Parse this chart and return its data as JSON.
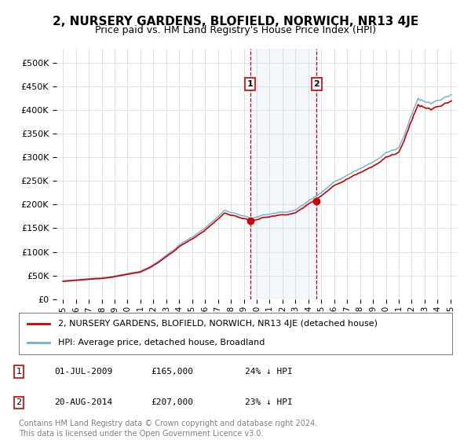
{
  "title": "2, NURSERY GARDENS, BLOFIELD, NORWICH, NR13 4JE",
  "subtitle": "Price paid vs. HM Land Registry's House Price Index (HPI)",
  "hpi_label": "HPI: Average price, detached house, Broadland",
  "property_label": "2, NURSERY GARDENS, BLOFIELD, NORWICH, NR13 4JE (detached house)",
  "hpi_color": "#6baed6",
  "property_color": "#cc0000",
  "marker_color": "#cc0000",
  "vline_color": "#cc0000",
  "shade_color": "#c6dbef",
  "purchase1_date": 2009.5,
  "purchase1_price": 165000,
  "purchase1_display": "01-JUL-2009",
  "purchase1_hpi_diff": "24% ↓ HPI",
  "purchase2_date": 2014.63,
  "purchase2_price": 207000,
  "purchase2_display": "20-AUG-2014",
  "purchase2_hpi_diff": "23% ↓ HPI",
  "yticks": [
    0,
    50000,
    100000,
    150000,
    200000,
    250000,
    300000,
    350000,
    400000,
    450000,
    500000
  ],
  "ylim": [
    0,
    530000
  ],
  "xlim": [
    1994.5,
    2025.5
  ],
  "footnote1": "Contains HM Land Registry data © Crown copyright and database right 2024.",
  "footnote2": "This data is licensed under the Open Government Licence v3.0.",
  "background_color": "#ffffff",
  "grid_color": "#dddddd"
}
